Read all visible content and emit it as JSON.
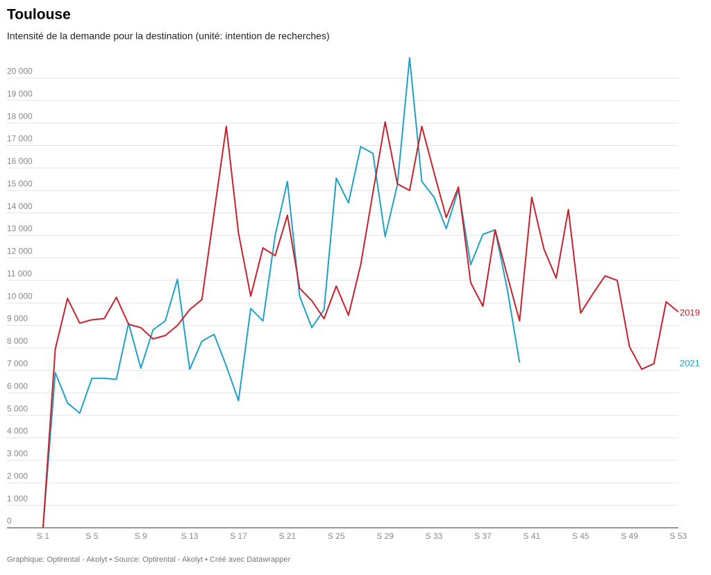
{
  "chart_data": {
    "type": "line",
    "title": "Toulouse",
    "subtitle": "Intensité de la demande pour la destination (unité: intention de recherches)",
    "source": "Graphique: Optirental - Akolyt • Source: Optirental - Akolyt • Créé avec Datawrapper",
    "categories": [
      "S 1",
      null,
      null,
      null,
      "S 5",
      null,
      null,
      null,
      "S 9",
      null,
      null,
      null,
      "S 13",
      null,
      null,
      null,
      "S 17",
      null,
      null,
      null,
      "S 21",
      null,
      null,
      null,
      "S 25",
      null,
      null,
      null,
      "S 29",
      null,
      null,
      null,
      "S 33",
      null,
      null,
      null,
      "S 37",
      null,
      null,
      null,
      "S 41",
      null,
      null,
      null,
      "S 45",
      null,
      null,
      null,
      "S 49",
      null,
      null,
      null,
      "S 53"
    ],
    "series": [
      {
        "name": "2019",
        "color": "#c8202a",
        "values": [
          0,
          7950,
          10200,
          9100,
          9250,
          9300,
          10250,
          9050,
          8900,
          8400,
          8550,
          9000,
          9700,
          10150,
          14000,
          17850,
          13100,
          10300,
          12450,
          12100,
          13900,
          10650,
          10100,
          9300,
          10750,
          9450,
          11700,
          14900,
          18050,
          15300,
          15000,
          17850,
          15800,
          13800,
          15150,
          10900,
          9850,
          13250,
          11200,
          9200,
          14700,
          12400,
          11100,
          14150,
          9550,
          10400,
          11200,
          11000,
          8050,
          7050,
          7300,
          10050,
          9600
        ]
      },
      {
        "name": "2021",
        "color": "#1ea0c8",
        "values": [
          0,
          6900,
          5550,
          5100,
          6650,
          6650,
          6600,
          9100,
          7100,
          8800,
          9200,
          11050,
          7050,
          8300,
          8600,
          7200,
          5650,
          9750,
          9200,
          13000,
          15400,
          10300,
          8900,
          9700,
          15550,
          14450,
          16950,
          16650,
          12950,
          15250,
          20900,
          15400,
          14700,
          13300,
          15050,
          11700,
          13050,
          13250,
          10600,
          7350,
          null,
          null,
          null,
          null,
          null,
          null,
          null,
          null,
          null,
          null,
          null,
          null,
          null
        ]
      }
    ],
    "ylim": [
      0,
      21000
    ],
    "yticks": [
      0,
      {
        "value": 1000,
        "label": "1 000"
      },
      {
        "value": 2000,
        "label": "2 000"
      },
      {
        "value": 3000,
        "label": "3 000"
      },
      {
        "value": 4000,
        "label": "4 000"
      },
      {
        "value": 5000,
        "label": "5 000"
      },
      {
        "value": 6000,
        "label": "6 000"
      },
      {
        "value": 7000,
        "label": "7 000"
      },
      {
        "value": 8000,
        "label": "8 000"
      },
      {
        "value": 9000,
        "label": "9 000"
      },
      {
        "value": 10000,
        "label": "10 000"
      },
      {
        "value": 11000,
        "label": "11 000"
      },
      {
        "value": 12000,
        "label": "12 000"
      },
      {
        "value": 13000,
        "label": "13 000"
      },
      {
        "value": 14000,
        "label": "14 000"
      },
      {
        "value": 15000,
        "label": "15 000"
      },
      {
        "value": 16000,
        "label": "16 000"
      },
      {
        "value": 17000,
        "label": "17 000"
      },
      {
        "value": 18000,
        "label": "18 000"
      },
      {
        "value": 19000,
        "label": "19 000"
      },
      {
        "value": 20000,
        "label": "20 000"
      }
    ],
    "grid": true
  }
}
